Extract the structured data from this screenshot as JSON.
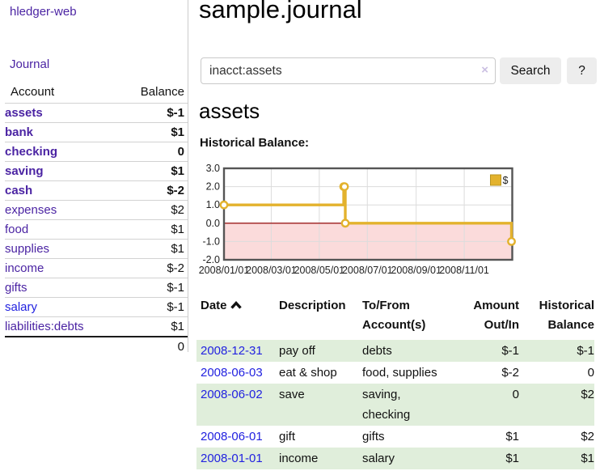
{
  "sidebar": {
    "app_title": "hledger-web",
    "journal_link": "Journal",
    "accounts_header": {
      "account": "Account",
      "balance": "Balance"
    },
    "accounts": [
      {
        "name": "assets",
        "balance": "$-1"
      },
      {
        "name": "bank",
        "balance": "$1"
      },
      {
        "name": "checking",
        "balance": "0"
      },
      {
        "name": "saving",
        "balance": "$1"
      },
      {
        "name": "cash",
        "balance": "$-2"
      },
      {
        "name": "expenses",
        "balance": "$2"
      },
      {
        "name": "food",
        "balance": "$1"
      },
      {
        "name": "supplies",
        "balance": "$1"
      },
      {
        "name": "income",
        "balance": "$-2"
      },
      {
        "name": "gifts",
        "balance": "$-1"
      },
      {
        "name": "salary",
        "balance": "$-1"
      },
      {
        "name": "liabilities:debts",
        "balance": "$1"
      }
    ],
    "total": "0"
  },
  "header": {
    "title": "sample.journal"
  },
  "search": {
    "value": "inacct:assets",
    "clear_icon": "×",
    "button_label": "Search",
    "help_label": "?"
  },
  "account_page": {
    "title": "assets",
    "chart_label": "Historical Balance:"
  },
  "chart_data": {
    "type": "line",
    "step": true,
    "title": "Historical Balance:",
    "legend": "$",
    "legend_position": "top-right",
    "ylim": [
      -2,
      3
    ],
    "y_tick_labels": [
      "3.0",
      "2.0",
      "1.0",
      "0.0",
      "-1.0",
      "-2.0"
    ],
    "y_tick_values": [
      3,
      2,
      1,
      0,
      -1,
      -2
    ],
    "x_range": [
      "2008-01-01",
      "2009-01-01"
    ],
    "x_tick_labels": [
      "2008/01/01",
      "2008/03/01",
      "2008/05/01",
      "2008/07/01",
      "2008/09/01",
      "2008/11/01"
    ],
    "series": [
      {
        "name": "$",
        "points": [
          [
            "2008-01-01",
            1
          ],
          [
            "2008-06-01",
            2
          ],
          [
            "2008-06-02",
            2
          ],
          [
            "2008-06-03",
            0
          ],
          [
            "2008-12-31",
            -1
          ]
        ]
      }
    ],
    "colors": {
      "line": "#e3b22d",
      "marker_fill": "#ffffff",
      "negative_region_fill": "#fbdbdb",
      "zero_line": "#9c1c1c",
      "plot_border": "#555555",
      "gridline": "#dcdcdc"
    }
  },
  "register": {
    "headers": {
      "date": "Date",
      "description": "Description",
      "account": "To/From\nAccount(s)",
      "amount": "Amount\nOut/In",
      "balance": "Historical\nBalance"
    },
    "rows": [
      {
        "date": "2008-12-31",
        "description": "pay off",
        "account": "debts",
        "amount": "$-1",
        "balance": "$-1"
      },
      {
        "date": "2008-06-03",
        "description": "eat & shop",
        "account": "food, supplies",
        "amount": "$-2",
        "balance": "0"
      },
      {
        "date": "2008-06-02",
        "description": "save",
        "account": "saving,\nchecking",
        "amount": "0",
        "balance": "$2"
      },
      {
        "date": "2008-06-01",
        "description": "gift",
        "account": "gifts",
        "amount": "$1",
        "balance": "$2"
      },
      {
        "date": "2008-01-01",
        "description": "income",
        "account": "salary",
        "amount": "$1",
        "balance": "$1"
      }
    ]
  },
  "colors": {
    "link_purple": "#4b24a3",
    "link_blue": "#2222e0",
    "negative_strong": "#8f1d1d",
    "negative_soft": "#c08181",
    "row_green": "#e0eedb",
    "button_gray": "#ededed"
  }
}
